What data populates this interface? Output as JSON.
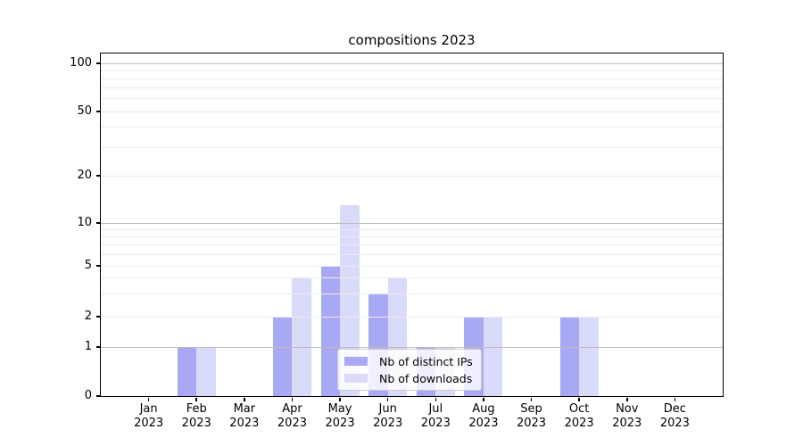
{
  "figure": {
    "background": "#ffffff"
  },
  "chart_data": {
    "type": "bar",
    "title": "compositions 2023",
    "xlabel": "",
    "ylabel": "",
    "yscale": "symlog",
    "ylim": [
      0,
      140
    ],
    "grid": true,
    "legend_position": "lower center (inside axes)",
    "categories": [
      "Jan 2023",
      "Feb 2023",
      "Mar 2023",
      "Apr 2023",
      "May 2023",
      "Jun 2023",
      "Jul 2023",
      "Aug 2023",
      "Sep 2023",
      "Oct 2023",
      "Nov 2023",
      "Dec 2023"
    ],
    "series": [
      {
        "name": "Nb of distinct IPs",
        "color": "#a8a8f4",
        "values": [
          0,
          1,
          0,
          2,
          5,
          3,
          1,
          2,
          0,
          2,
          0,
          0
        ]
      },
      {
        "name": "Nb of downloads",
        "color": "#dadafa",
        "values": [
          0,
          1,
          0,
          4,
          13,
          4,
          1,
          2,
          0,
          2,
          0,
          0
        ]
      }
    ],
    "y_tick_values": [
      0,
      1,
      2,
      5,
      10,
      20,
      50,
      100
    ],
    "y_tick_labels": [
      "0",
      "1",
      "2",
      "5",
      "10",
      "20",
      "50",
      "100"
    ],
    "major_grid_values": [
      1,
      10,
      100
    ],
    "minor_grid_values": [
      2,
      3,
      4,
      5,
      6,
      7,
      8,
      9,
      20,
      30,
      40,
      50,
      60,
      70,
      80,
      90
    ]
  },
  "colors": {
    "spine": "#000000",
    "major_grid": "#bdbdbd",
    "minor_grid": "#ebebeb",
    "legend_border": "#cccccc",
    "text": "#000000"
  }
}
